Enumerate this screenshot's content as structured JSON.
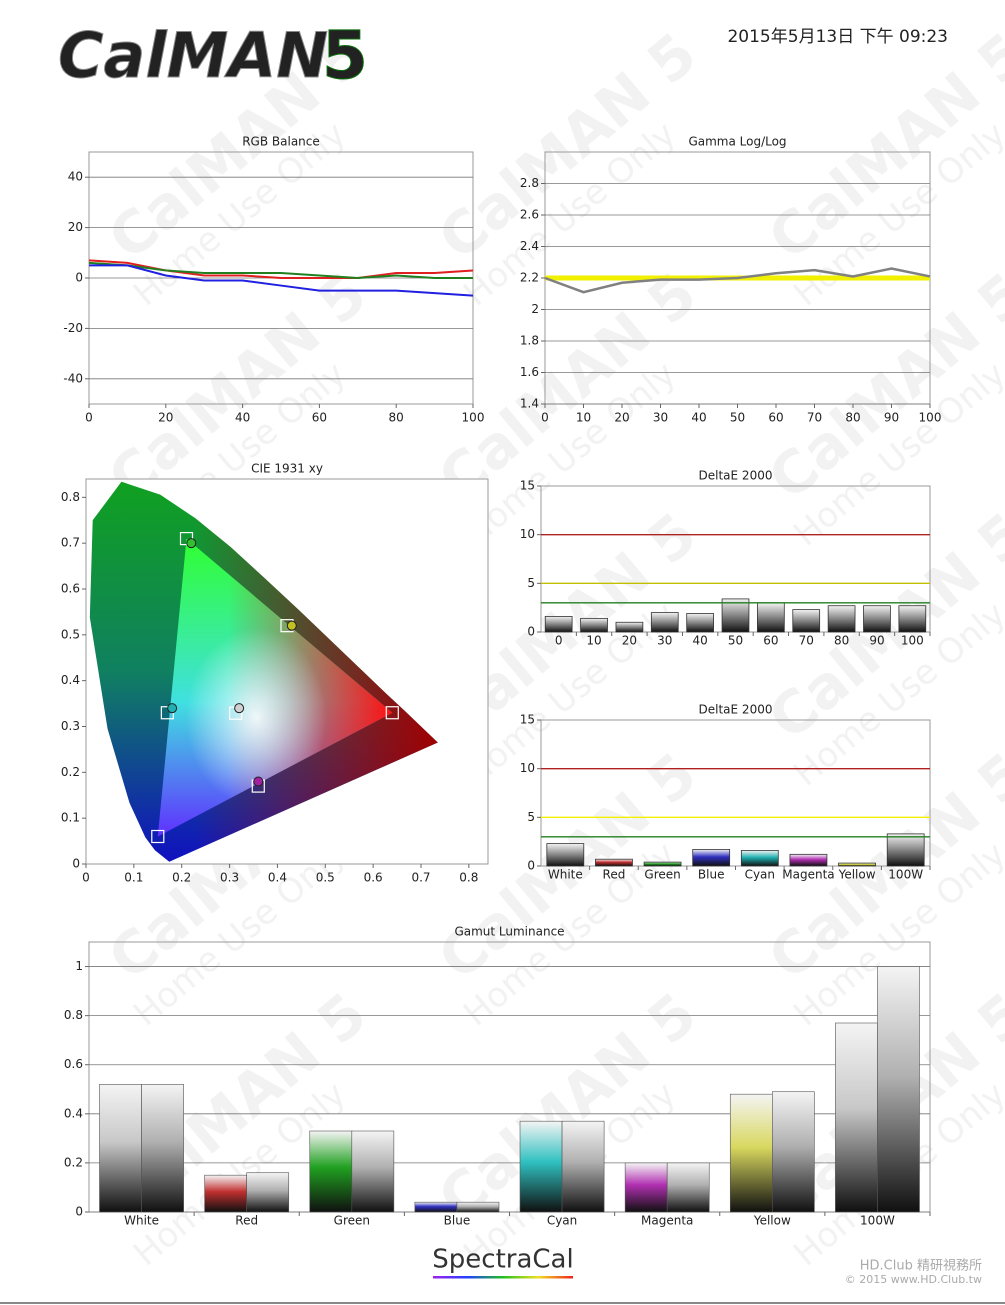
{
  "header": {
    "logo": "CalMAN",
    "version": "5",
    "timestamp": "2015年5月13日 下午 09:23"
  },
  "background_watermark": [
    "CalMAN 5",
    "Home Use Only"
  ],
  "footer": {
    "brand": "SpectraCal",
    "credit": [
      "HD.Club 精研視務所",
      "© 2015 www.HD.Club.tw"
    ]
  },
  "chart_data": [
    {
      "type": "line",
      "title": "RGB Balance",
      "x": [
        0,
        10,
        20,
        30,
        40,
        50,
        60,
        70,
        80,
        90,
        100
      ],
      "xlim": [
        0,
        100
      ],
      "xticks": [
        0,
        20,
        40,
        60,
        80,
        100
      ],
      "ylim": [
        -50,
        50
      ],
      "yticks": [
        -40,
        -20,
        0,
        20,
        40
      ],
      "grid": true,
      "series": [
        {
          "color": "#e02020",
          "values": [
            7,
            6,
            3,
            1,
            1,
            0,
            0,
            0,
            2,
            2,
            3
          ]
        },
        {
          "color": "#208020",
          "values": [
            6,
            5,
            3,
            2,
            2,
            2,
            1,
            0,
            1,
            0,
            0
          ]
        },
        {
          "color": "#2020e0",
          "values": [
            5,
            5,
            1,
            -1,
            -1,
            -3,
            -5,
            -5,
            -5,
            -6,
            -7
          ]
        }
      ]
    },
    {
      "type": "line",
      "title": "Gamma Log/Log",
      "x": [
        0,
        10,
        20,
        30,
        40,
        50,
        60,
        70,
        80,
        90,
        100
      ],
      "xlim": [
        0,
        100
      ],
      "xticks": [
        0,
        10,
        20,
        30,
        40,
        50,
        60,
        70,
        80,
        90,
        100
      ],
      "ylim": [
        1.4,
        3.0
      ],
      "yticks": [
        1.4,
        1.6,
        1.8,
        2,
        2.2,
        2.4,
        2.6,
        2.8
      ],
      "grid": true,
      "series": [
        {
          "color": "#f0f000",
          "width": 5,
          "values": [
            2.2,
            2.2,
            2.2,
            2.2,
            2.2,
            2.2,
            2.2,
            2.2,
            2.2,
            2.2,
            2.2
          ]
        },
        {
          "color": "#808080",
          "width": 2.5,
          "values": [
            2.2,
            2.11,
            2.17,
            2.19,
            2.19,
            2.2,
            2.23,
            2.25,
            2.21,
            2.26,
            2.21
          ]
        }
      ]
    },
    {
      "type": "scatter",
      "title": "CIE 1931 xy",
      "xlim": [
        0,
        0.84
      ],
      "xticks": [
        0,
        0.1,
        0.2,
        0.3,
        0.4,
        0.5,
        0.6,
        0.7,
        0.8
      ],
      "ylim": [
        0,
        0.84
      ],
      "yticks": [
        0,
        0.1,
        0.2,
        0.3,
        0.4,
        0.5,
        0.6,
        0.7,
        0.8
      ],
      "locus": {
        "x": [
          0.174,
          0.144,
          0.124,
          0.091,
          0.045,
          0.008,
          0.014,
          0.074,
          0.155,
          0.229,
          0.302,
          0.373,
          0.444,
          0.512,
          0.575,
          0.627,
          0.666,
          0.735
        ],
        "y": [
          0.005,
          0.03,
          0.058,
          0.133,
          0.295,
          0.538,
          0.75,
          0.834,
          0.806,
          0.754,
          0.692,
          0.624,
          0.555,
          0.487,
          0.424,
          0.372,
          0.334,
          0.265
        ]
      },
      "series": [
        {
          "marker": "square",
          "color": "#ffffff",
          "x": [
            0.64,
            0.21,
            0.15,
            0.17,
            0.42,
            0.36,
            0.3127
          ],
          "y": [
            0.33,
            0.71,
            0.06,
            0.33,
            0.52,
            0.17,
            0.329
          ]
        },
        {
          "marker": "circle",
          "colors": [
            "#30c030",
            "#c0c020",
            "#20b0b0",
            "#d0d0d0",
            "#a020a0"
          ],
          "x": [
            0.22,
            0.43,
            0.18,
            0.32,
            0.36
          ],
          "y": [
            0.7,
            0.52,
            0.34,
            0.34,
            0.18
          ]
        }
      ]
    },
    {
      "type": "bar",
      "title": "DeltaE 2000",
      "categories": [
        "0",
        "10",
        "20",
        "30",
        "40",
        "50",
        "60",
        "70",
        "80",
        "90",
        "100"
      ],
      "values": [
        1.6,
        1.4,
        1.0,
        2.0,
        1.9,
        3.4,
        3.0,
        2.3,
        2.7,
        2.7,
        2.7
      ],
      "color": "#909090",
      "ylim": [
        0,
        15
      ],
      "yticks": [
        0,
        5,
        10,
        15
      ],
      "thresholds": [
        {
          "value": 10,
          "color": "#b02020"
        },
        {
          "value": 5,
          "color": "#c0c000"
        },
        {
          "value": 3,
          "color": "#208020"
        }
      ]
    },
    {
      "type": "bar",
      "title": "DeltaE 2000",
      "categories": [
        "White",
        "Red",
        "Green",
        "Blue",
        "Cyan",
        "Magenta",
        "Yellow",
        "100W"
      ],
      "values": [
        2.3,
        0.7,
        0.4,
        1.7,
        1.6,
        1.2,
        0.3,
        3.3
      ],
      "colors": [
        "#909090",
        "#c03030",
        "#20a020",
        "#3030c0",
        "#20b0b0",
        "#b030b0",
        "#e0e040",
        "#909090"
      ],
      "ylim": [
        0,
        15
      ],
      "yticks": [
        0,
        5,
        10,
        15
      ],
      "thresholds": [
        {
          "value": 10,
          "color": "#b02020"
        },
        {
          "value": 5,
          "color": "#f0f000"
        },
        {
          "value": 3,
          "color": "#208020"
        }
      ]
    },
    {
      "type": "bar",
      "title": "Gamut Luminance",
      "categories": [
        "White",
        "Red",
        "Green",
        "Blue",
        "Cyan",
        "Magenta",
        "Yellow",
        "100W"
      ],
      "ylim": [
        0,
        1.1
      ],
      "yticks": [
        0,
        0.2,
        0.4,
        0.6,
        0.8,
        1
      ],
      "grid": true,
      "series": [
        {
          "colors": [
            "#c8c8c8",
            "#c03030",
            "#20a020",
            "#3030c0",
            "#30c0c0",
            "#b030b0",
            "#d8d860",
            "#c8c8c8"
          ],
          "values": [
            0.52,
            0.15,
            0.33,
            0.04,
            0.37,
            0.2,
            0.48,
            0.77
          ]
        },
        {
          "color": "#b0b0b0",
          "values": [
            0.52,
            0.16,
            0.33,
            0.04,
            0.37,
            0.2,
            0.49,
            1.0
          ]
        }
      ]
    }
  ]
}
